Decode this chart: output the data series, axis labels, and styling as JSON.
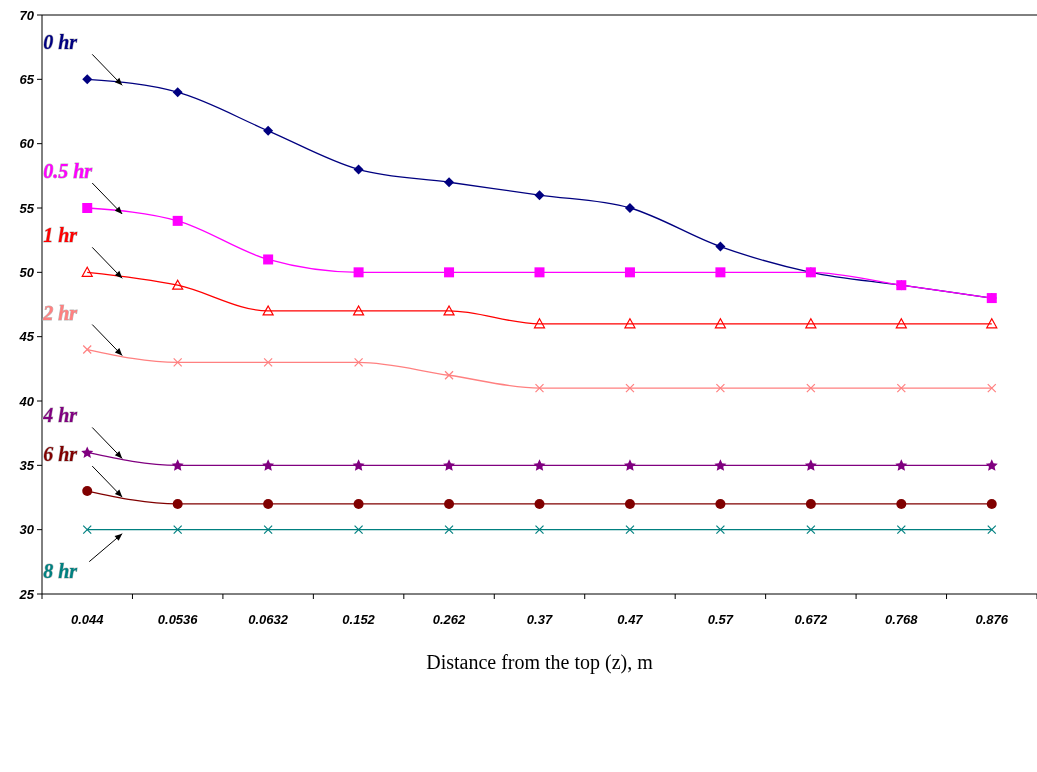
{
  "chart_data": {
    "type": "line",
    "xlabel": "Distance from the top (z), m",
    "categories": [
      "0.044",
      "0.0536",
      "0.0632",
      "0.152",
      "0.262",
      "0.37",
      "0.47",
      "0.57",
      "0.672",
      "0.768",
      "0.876"
    ],
    "ylim": [
      25,
      70
    ],
    "yticks": [
      25,
      30,
      35,
      40,
      45,
      50,
      55,
      60,
      65,
      70
    ],
    "grid": false,
    "series": [
      {
        "name": "0 hr",
        "color": "#000080",
        "marker": "diamond",
        "values": [
          65,
          64,
          61,
          58,
          57,
          56,
          55,
          52,
          50,
          49,
          48
        ]
      },
      {
        "name": "0.5 hr",
        "color": "#ff00ff",
        "marker": "square",
        "values": [
          55,
          54,
          51,
          50,
          50,
          50,
          50,
          50,
          50,
          49,
          48
        ]
      },
      {
        "name": "1 hr",
        "color": "#ff0000",
        "marker": "triangle",
        "values": [
          50,
          49,
          47,
          47,
          47,
          46,
          46,
          46,
          46,
          46,
          46
        ]
      },
      {
        "name": "2 hr",
        "color": "#ff8080",
        "marker": "cross",
        "values": [
          44,
          43,
          43,
          43,
          42,
          41,
          41,
          41,
          41,
          41,
          41
        ]
      },
      {
        "name": "4 hr",
        "color": "#800080",
        "marker": "star",
        "values": [
          36,
          35,
          35,
          35,
          35,
          35,
          35,
          35,
          35,
          35,
          35
        ]
      },
      {
        "name": "6 hr",
        "color": "#800000",
        "marker": "circle",
        "values": [
          33,
          32,
          32,
          32,
          32,
          32,
          32,
          32,
          32,
          32,
          32
        ]
      },
      {
        "name": "8 hr",
        "color": "#008080",
        "marker": "cross",
        "values": [
          30,
          30,
          30,
          30,
          30,
          30,
          30,
          30,
          30,
          30,
          30
        ]
      }
    ]
  }
}
